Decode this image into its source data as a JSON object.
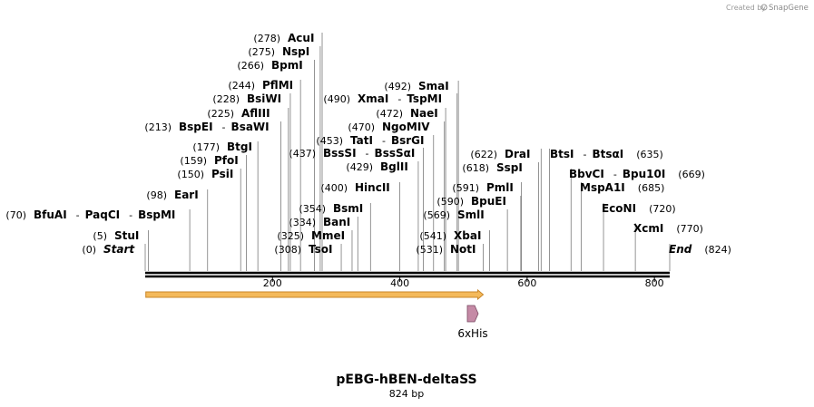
{
  "credit": {
    "prefix": "Created by",
    "brand": "SnapGene"
  },
  "sequence": {
    "name": "pEBG-hBEN-deltaSS",
    "length_label": "824 bp",
    "length": 824
  },
  "axis": {
    "ticks": [
      200,
      400,
      600,
      800
    ]
  },
  "colors": {
    "orf_fill": "#f4b95a",
    "orf_stroke": "#c9872a",
    "feature_fill": "#c58aa6",
    "feature_stroke": "#7a4a63",
    "line": "#000000"
  },
  "sites": [
    {
      "labels": [
        {
          "pos": "(0)",
          "name": "Start",
          "italic": true
        }
      ],
      "bp": 0
    },
    {
      "labels": [
        {
          "pos": "(5)",
          "name": "StuI"
        }
      ],
      "bp": 5
    },
    {
      "labels": [
        {
          "pos": "(70)",
          "name": "BfuAI"
        },
        {
          "sep": "-",
          "name": "PaqCI"
        },
        {
          "sep": "-",
          "name": "BspMI"
        }
      ],
      "bp": 70
    },
    {
      "labels": [
        {
          "pos": "(98)",
          "name": "EarI"
        }
      ],
      "bp": 98
    },
    {
      "labels": [
        {
          "pos": "(150)",
          "name": "PsiI"
        }
      ],
      "bp": 150
    },
    {
      "labels": [
        {
          "pos": "(159)",
          "name": "PfoI"
        }
      ],
      "bp": 159
    },
    {
      "labels": [
        {
          "pos": "(177)",
          "name": "BtgI"
        }
      ],
      "bp": 177
    },
    {
      "labels": [
        {
          "pos": "(213)",
          "name": "BspEI"
        },
        {
          "sep": "-",
          "name": "BsaWI"
        }
      ],
      "bp": 213
    },
    {
      "labels": [
        {
          "pos": "(225)",
          "name": "AflIII"
        }
      ],
      "bp": 225
    },
    {
      "labels": [
        {
          "pos": "(228)",
          "name": "BsiWI"
        }
      ],
      "bp": 228
    },
    {
      "labels": [
        {
          "pos": "(244)",
          "name": "PflMI"
        }
      ],
      "bp": 244
    },
    {
      "labels": [
        {
          "pos": "(266)",
          "name": "BpmI"
        }
      ],
      "bp": 266
    },
    {
      "labels": [
        {
          "pos": "(275)",
          "name": "NspI"
        }
      ],
      "bp": 275
    },
    {
      "labels": [
        {
          "pos": "(278)",
          "name": "AcuI"
        }
      ],
      "bp": 278
    },
    {
      "labels": [
        {
          "pos": "(308)",
          "name": "TsoI"
        }
      ],
      "bp": 308
    },
    {
      "labels": [
        {
          "pos": "(325)",
          "name": "MmeI"
        }
      ],
      "bp": 325
    },
    {
      "labels": [
        {
          "pos": "(334)",
          "name": "BanI"
        }
      ],
      "bp": 334
    },
    {
      "labels": [
        {
          "pos": "(354)",
          "name": "BsmI"
        }
      ],
      "bp": 354
    },
    {
      "labels": [
        {
          "pos": "(400)",
          "name": "HincII"
        }
      ],
      "bp": 400
    },
    {
      "labels": [
        {
          "pos": "(429)",
          "name": "BglII"
        }
      ],
      "bp": 429
    },
    {
      "labels": [
        {
          "pos": "(437)",
          "name": "BssSI"
        },
        {
          "sep": "-",
          "name": "BssSαI"
        }
      ],
      "bp": 437
    },
    {
      "labels": [
        {
          "pos": "(453)",
          "name": "TatI"
        },
        {
          "sep": "-",
          "name": "BsrGI"
        }
      ],
      "bp": 453
    },
    {
      "labels": [
        {
          "pos": "(470)",
          "name": "NgoMIV"
        }
      ],
      "bp": 470
    },
    {
      "labels": [
        {
          "pos": "(472)",
          "name": "NaeI"
        }
      ],
      "bp": 472
    },
    {
      "labels": [
        {
          "pos": "(490)",
          "name": "XmaI"
        },
        {
          "sep": "-",
          "name": "TspMI"
        }
      ],
      "bp": 490
    },
    {
      "labels": [
        {
          "pos": "(492)",
          "name": "SmaI"
        }
      ],
      "bp": 492
    },
    {
      "labels": [
        {
          "pos": "(531)",
          "name": "NotI"
        }
      ],
      "bp": 531
    },
    {
      "labels": [
        {
          "pos": "(541)",
          "name": "XbaI"
        }
      ],
      "bp": 541
    },
    {
      "labels": [
        {
          "pos": "(569)",
          "name": "SmlI"
        }
      ],
      "bp": 569
    },
    {
      "labels": [
        {
          "pos": "(590)",
          "name": "BpuEI"
        }
      ],
      "bp": 590
    },
    {
      "labels": [
        {
          "pos": "(591)",
          "name": "PmlI"
        }
      ],
      "bp": 591
    },
    {
      "labels": [
        {
          "pos": "(618)",
          "name": "SspI"
        }
      ],
      "bp": 618
    },
    {
      "labels": [
        {
          "pos": "(622)",
          "name": "DraI"
        }
      ],
      "bp": 622
    },
    {
      "labels": [
        {
          "name": "BtsI"
        },
        {
          "sep": "-",
          "name": "BtsαI"
        },
        {
          "pos": "(635)",
          "after": true
        }
      ],
      "bp": 635
    },
    {
      "labels": [
        {
          "name": "BbvCI"
        },
        {
          "sep": "-",
          "name": "Bpu10I"
        },
        {
          "pos": "(669)",
          "after": true
        }
      ],
      "bp": 669
    },
    {
      "labels": [
        {
          "name": "MspA1I"
        },
        {
          "pos": "(685)",
          "after": true
        }
      ],
      "bp": 685
    },
    {
      "labels": [
        {
          "name": "EcoNI"
        },
        {
          "pos": "(720)",
          "after": true
        }
      ],
      "bp": 720
    },
    {
      "labels": [
        {
          "name": "XcmI"
        },
        {
          "pos": "(770)",
          "after": true
        }
      ],
      "bp": 770
    },
    {
      "labels": [
        {
          "name": "End",
          "italic": true
        },
        {
          "pos": "(824)",
          "after": true
        }
      ],
      "bp": 824
    }
  ],
  "features": [
    {
      "name": "orf",
      "type": "orf",
      "start_bp": 1,
      "end_bp": 531
    },
    {
      "name": "6xHis",
      "type": "tag",
      "start_bp": 510,
      "end_bp": 527,
      "label": "6xHis"
    }
  ]
}
